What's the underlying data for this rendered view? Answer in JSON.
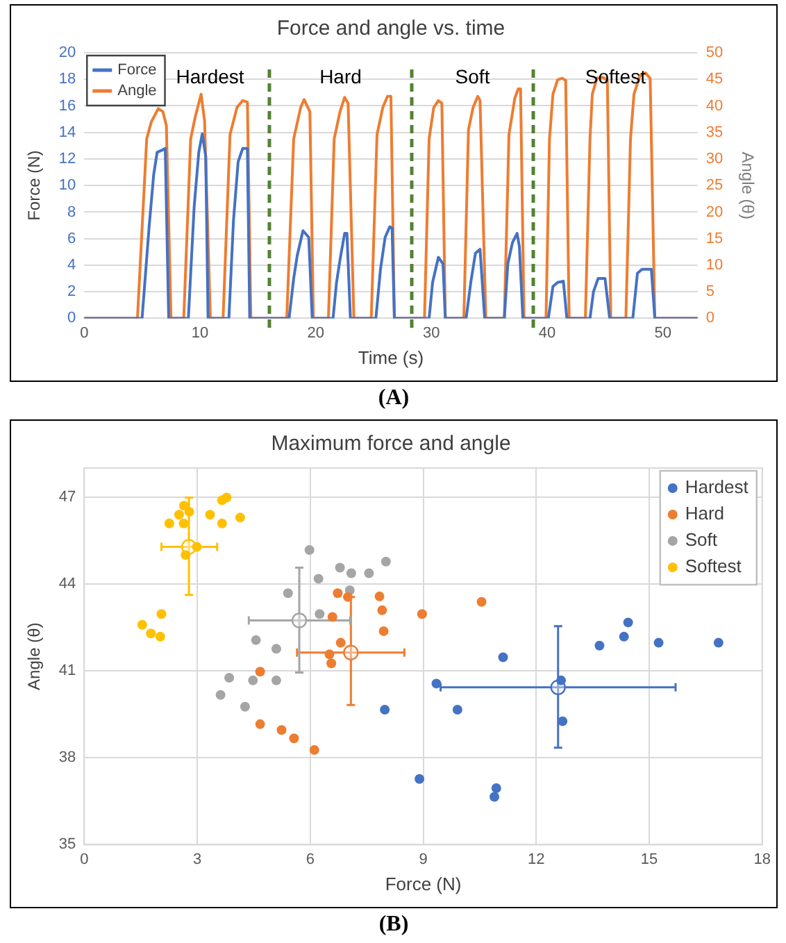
{
  "chart_data": [
    {
      "type": "line",
      "title": "Force and angle vs. time",
      "xlabel": "Time (s)",
      "ylabel": "Force (N)",
      "y2label": "Angle (θ)",
      "xlim": [
        0,
        53
      ],
      "xticks": [
        0,
        10,
        20,
        30,
        40,
        50
      ],
      "ylim": [
        0,
        20
      ],
      "yticks": [
        0,
        2,
        4,
        6,
        8,
        10,
        12,
        14,
        16,
        18,
        20
      ],
      "y2lim": [
        0,
        50
      ],
      "y2ticks": [
        0,
        5,
        10,
        15,
        20,
        25,
        30,
        35,
        40,
        45,
        50
      ],
      "grid": "y",
      "legend": "top left",
      "marker": "none",
      "line_style": "solid",
      "ref_lines": [
        {
          "axis": "x",
          "value": 16.0,
          "color": "#548235",
          "line_style": "dashed"
        },
        {
          "axis": "x",
          "value": 28.3,
          "color": "#548235",
          "line_style": "dashed"
        },
        {
          "axis": "x",
          "value": 38.8,
          "color": "#548235",
          "line_style": "dashed"
        }
      ],
      "annotations": [
        "Hardest",
        "Hard",
        "Soft",
        "Softest",
        "(A)"
      ],
      "series": [
        {
          "name": "Force",
          "color": "#4472c4",
          "x": [
            0,
            5.0,
            5.6,
            6.0,
            6.3,
            6.8,
            7.0,
            7.3,
            9.0,
            9.5,
            9.9,
            10.2,
            10.5,
            10.7,
            12.5,
            12.9,
            13.3,
            13.7,
            14.1,
            14.3,
            17.7,
            18.1,
            18.4,
            18.9,
            19.4,
            19.7,
            21.5,
            21.8,
            22.1,
            22.5,
            22.7,
            23.0,
            25.2,
            25.6,
            26.0,
            26.4,
            26.6,
            26.8,
            29.8,
            30.1,
            30.6,
            31.0,
            31.2,
            33.0,
            33.4,
            33.8,
            34.2,
            34.6,
            36.3,
            36.6,
            37.0,
            37.4,
            37.6,
            37.9,
            40.1,
            40.5,
            40.9,
            41.4,
            41.7,
            43.7,
            44.0,
            44.4,
            45.0,
            45.4,
            47.4,
            47.8,
            48.2,
            49.0,
            49.3,
            53
          ],
          "values": [
            0,
            0,
            6.8,
            10.8,
            12.5,
            12.7,
            12.8,
            0,
            0,
            8.4,
            12.5,
            13.9,
            12.2,
            0,
            0,
            7.4,
            11.8,
            12.8,
            12.8,
            0,
            0,
            3.0,
            4.7,
            6.6,
            6.1,
            0,
            0,
            2.7,
            4.4,
            6.4,
            6.4,
            0,
            0,
            3.7,
            6.1,
            6.9,
            6.8,
            0,
            0,
            2.7,
            4.6,
            4.1,
            0,
            0,
            2.7,
            4.9,
            5.2,
            0,
            0,
            4.1,
            5.7,
            6.4,
            5.4,
            0,
            0,
            2.4,
            2.7,
            2.8,
            0,
            0,
            2.0,
            3.0,
            3.0,
            0,
            0,
            3.4,
            3.7,
            3.7,
            0,
            0
          ]
        },
        {
          "name": "Angle",
          "color": "#ed7d31",
          "axis": "y2",
          "x": [
            0,
            4.6,
            5.4,
            5.8,
            6.4,
            6.8,
            7.1,
            7.5,
            8.6,
            9.2,
            9.6,
            10.1,
            10.4,
            10.9,
            12.0,
            12.6,
            13.2,
            13.7,
            14.1,
            14.4,
            17.5,
            18.1,
            18.7,
            19.0,
            19.5,
            19.8,
            21.1,
            21.6,
            22.1,
            22.5,
            22.8,
            23.3,
            24.8,
            25.3,
            25.8,
            26.2,
            26.5,
            26.8,
            29.4,
            29.8,
            30.2,
            30.6,
            30.9,
            31.2,
            32.8,
            33.2,
            33.6,
            34.0,
            34.2,
            34.7,
            36.3,
            36.7,
            37.2,
            37.5,
            37.7,
            38.0,
            39.9,
            40.2,
            40.5,
            40.9,
            41.3,
            41.6,
            41.9,
            43.3,
            43.7,
            43.9,
            44.3,
            44.8,
            45.2,
            45.5,
            46.8,
            47.2,
            47.5,
            48.0,
            48.5,
            48.9,
            49.3,
            53
          ],
          "values": [
            0,
            0,
            33.8,
            37,
            39.5,
            38.9,
            36.3,
            0,
            0,
            33.8,
            38,
            42.2,
            37.2,
            0,
            0,
            34.6,
            39.7,
            41,
            40.7,
            0,
            0,
            33.8,
            39.7,
            41.2,
            38.9,
            0,
            0,
            33.8,
            38.9,
            41.6,
            40.5,
            0,
            0,
            34.6,
            39.7,
            41.8,
            41.8,
            0,
            0,
            33.8,
            39.7,
            41,
            40.5,
            0,
            0,
            35.5,
            39.7,
            41.8,
            41,
            0,
            0,
            34.6,
            41.4,
            43.2,
            43.2,
            0,
            0,
            33.8,
            42.2,
            44.9,
            45.2,
            44.8,
            0,
            0,
            33.8,
            42.2,
            45.2,
            45.4,
            44.8,
            0,
            0,
            33.8,
            42.2,
            45.6,
            46.2,
            45.2,
            0,
            0
          ]
        }
      ]
    },
    {
      "type": "scatter",
      "title": "Maximum force and angle",
      "xlabel": "Force (N)",
      "ylabel": "Angle (θ)",
      "xlim": [
        0,
        18
      ],
      "xticks": [
        0,
        3,
        6,
        9,
        12,
        15,
        18
      ],
      "ylim": [
        35,
        48
      ],
      "yticks": [
        35,
        38,
        41,
        44,
        47
      ],
      "grid": true,
      "legend": "top right",
      "marker": "circle",
      "annotations": [
        "(B)"
      ],
      "series": [
        {
          "name": "Hardest",
          "color": "#4472c4",
          "x": [
            7.98,
            8.9,
            9.35,
            9.91,
            11.12,
            10.94,
            10.89,
            12.66,
            12.7,
            13.68,
            14.33,
            14.44,
            15.25,
            16.84
          ],
          "values": [
            39.66,
            37.27,
            40.56,
            39.66,
            41.47,
            36.95,
            36.65,
            40.67,
            39.26,
            41.87,
            42.18,
            42.67,
            41.97,
            41.97
          ]
        },
        {
          "name": "Hard",
          "color": "#ed7d31",
          "x": [
            6.73,
            7.0,
            7.84,
            7.91,
            8.97,
            7.95,
            6.59,
            6.81,
            6.51,
            6.56,
            4.67,
            4.67,
            5.24,
            5.57,
            6.11,
            10.55
          ],
          "values": [
            43.68,
            43.55,
            43.57,
            43.09,
            42.96,
            42.37,
            42.86,
            41.97,
            41.57,
            41.26,
            40.97,
            39.16,
            38.96,
            38.67,
            38.27,
            43.38
          ]
        },
        {
          "name": "Soft",
          "color": "#a5a5a5",
          "x": [
            5.98,
            6.22,
            6.79,
            7.09,
            7.56,
            8.01,
            7.05,
            5.41,
            6.25,
            4.56,
            5.1,
            3.85,
            4.48,
            5.1,
            3.62,
            4.27
          ],
          "values": [
            45.17,
            44.18,
            44.56,
            44.37,
            44.37,
            44.77,
            43.78,
            43.68,
            42.96,
            42.06,
            41.76,
            40.76,
            40.67,
            40.67,
            40.17,
            39.76
          ]
        },
        {
          "name": "Softest",
          "color": "#ffc000",
          "x": [
            2.26,
            2.52,
            2.65,
            2.79,
            2.64,
            3.34,
            3.66,
            3.78,
            3.66,
            4.14,
            2.99,
            2.69,
            2.05,
            1.54,
            1.77,
            2.02
          ],
          "values": [
            46.09,
            46.39,
            46.7,
            46.49,
            46.09,
            46.39,
            46.89,
            46.98,
            46.09,
            46.29,
            45.28,
            45.0,
            42.96,
            42.59,
            42.29,
            42.18
          ]
        },
        {
          "color": "#4472c4",
          "x": [
            12.58
          ],
          "values": [
            40.43
          ],
          "errors": [
            [
              38.35,
              42.54
            ]
          ],
          "xerrors": [
            [
              9.46,
              15.7
            ]
          ]
        },
        {
          "color": "#ed7d31",
          "x": [
            7.08
          ],
          "values": [
            41.63
          ],
          "errors": [
            [
              39.82,
              43.55
            ]
          ],
          "xerrors": [
            [
              5.65,
              8.5
            ]
          ]
        },
        {
          "color": "#a5a5a5",
          "x": [
            5.71
          ],
          "values": [
            42.74
          ],
          "errors": [
            [
              40.94,
              44.56
            ]
          ],
          "xerrors": [
            [
              4.37,
              7.06
            ]
          ]
        },
        {
          "color": "#ffc000",
          "x": [
            2.78
          ],
          "values": [
            45.28
          ],
          "errors": [
            [
              43.62,
              46.98
            ]
          ],
          "xerrors": [
            [
              2.05,
              3.53
            ]
          ]
        }
      ]
    }
  ]
}
